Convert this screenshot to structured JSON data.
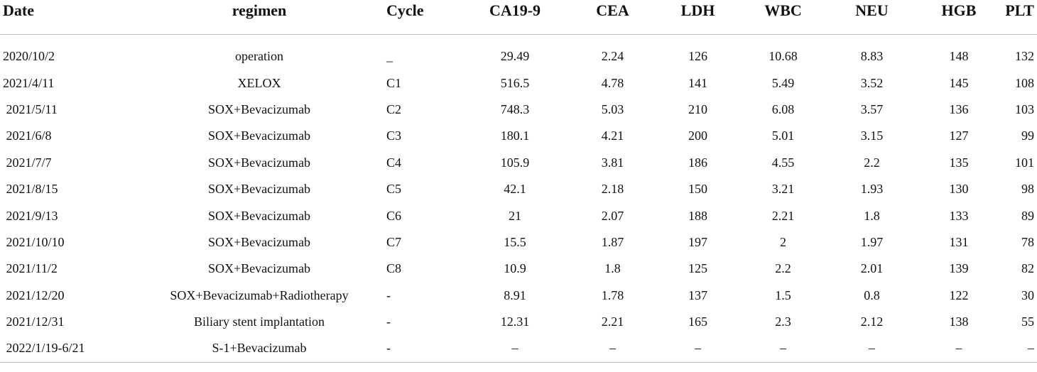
{
  "table": {
    "headers": [
      "Date",
      "regimen",
      "Cycle",
      "CA19-9",
      "CEA",
      "LDH",
      "WBC",
      "NEU",
      "HGB",
      "PLT"
    ],
    "rows": [
      [
        "2020/10/2",
        "operation",
        "_",
        "29.49",
        "2.24",
        "126",
        "10.68",
        "8.83",
        "148",
        "132"
      ],
      [
        "2021/4/11",
        "XELOX",
        "C1",
        "516.5",
        "4.78",
        "141",
        "5.49",
        "3.52",
        "145",
        "108"
      ],
      [
        " 2021/5/11",
        "SOX+Bevacizumab",
        "C2",
        "748.3",
        "5.03",
        "210",
        "6.08",
        "3.57",
        "136",
        "103"
      ],
      [
        " 2021/6/8",
        "SOX+Bevacizumab",
        "C3",
        "180.1",
        "4.21",
        "200",
        "5.01",
        "3.15",
        "127",
        "99"
      ],
      [
        " 2021/7/7",
        "SOX+Bevacizumab",
        "C4",
        "105.9",
        "3.81",
        "186",
        "4.55",
        "2.2",
        "135",
        "101"
      ],
      [
        " 2021/8/15",
        "SOX+Bevacizumab",
        "C5",
        "42.1",
        "2.18",
        "150",
        "3.21",
        "1.93",
        "130",
        "98"
      ],
      [
        " 2021/9/13",
        "SOX+Bevacizumab",
        "C6",
        "21",
        "2.07",
        "188",
        "2.21",
        "1.8",
        "133",
        "89"
      ],
      [
        " 2021/10/10",
        "SOX+Bevacizumab",
        "C7",
        "15.5",
        "1.87",
        "197",
        "2",
        "1.97",
        "131",
        "78"
      ],
      [
        " 2021/11/2",
        "SOX+Bevacizumab",
        "C8",
        "10.9",
        "1.8",
        "125",
        "2.2",
        "2.01",
        "139",
        "82"
      ],
      [
        " 2021/12/20",
        "SOX+Bevacizumab+Radiotherapy",
        "-",
        "8.91",
        "1.78",
        "137",
        "1.5",
        "0.8",
        "122",
        "30"
      ],
      [
        " 2021/12/31",
        "Biliary stent implantation",
        "-",
        "12.31",
        "2.21",
        "165",
        "2.3",
        "2.12",
        "138",
        "55"
      ],
      [
        " 2022/1/19-6/21",
        "S-1+Bevacizumab",
        "-",
        "–",
        "–",
        "–",
        "–",
        "–",
        "–",
        "–"
      ]
    ]
  }
}
